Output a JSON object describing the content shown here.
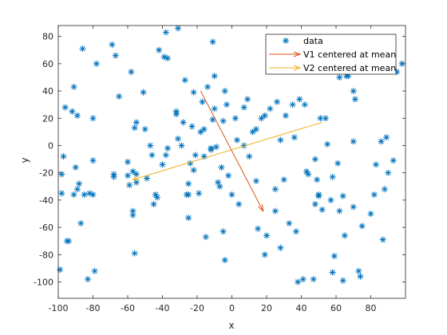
{
  "chart_data": {
    "type": "scatter",
    "title": "",
    "xlabel": "x",
    "ylabel": "y",
    "xlim": [
      -100,
      100
    ],
    "ylim": [
      -112,
      88
    ],
    "xticks": [
      -100,
      -80,
      -60,
      -40,
      -20,
      0,
      20,
      40,
      60,
      80
    ],
    "yticks": [
      -100,
      -80,
      -60,
      -40,
      -20,
      0,
      20,
      40,
      60,
      80
    ],
    "grid": false,
    "legend_position": "top-right",
    "legend": [
      "data",
      "V1 centered at mean",
      "V2 centered at mean"
    ],
    "colors": {
      "data": "#0072BD",
      "v1": "#D95319",
      "v2": "#EDB120",
      "axes": "#262626"
    },
    "series": [
      {
        "name": "data",
        "marker": "asterisk",
        "points": [
          [
            -99,
            -91
          ],
          [
            -98,
            -35
          ],
          [
            -98,
            -21
          ],
          [
            -97,
            -8
          ],
          [
            -96,
            28
          ],
          [
            -95,
            -70
          ],
          [
            -94,
            -70
          ],
          [
            -92,
            25
          ],
          [
            -91,
            43
          ],
          [
            -91,
            -36
          ],
          [
            -90,
            -16
          ],
          [
            -89,
            22
          ],
          [
            -89,
            -32
          ],
          [
            -88,
            -28
          ],
          [
            -87,
            -57
          ],
          [
            -86,
            71
          ],
          [
            -85,
            -36
          ],
          [
            -83,
            -98
          ],
          [
            -82,
            -35
          ],
          [
            -80,
            -36
          ],
          [
            -80,
            20
          ],
          [
            -80,
            -11
          ],
          [
            -79,
            -92
          ],
          [
            -78,
            60
          ],
          [
            -69,
            74
          ],
          [
            -68,
            -21
          ],
          [
            -68,
            -23
          ],
          [
            -67,
            66
          ],
          [
            -65,
            36
          ],
          [
            -60,
            -12
          ],
          [
            -60,
            -22
          ],
          [
            -59,
            -29
          ],
          [
            -58,
            54
          ],
          [
            -57,
            -48
          ],
          [
            -57,
            -51
          ],
          [
            -57,
            -19
          ],
          [
            -56,
            -79
          ],
          [
            -56,
            13
          ],
          [
            -55,
            17
          ],
          [
            -55,
            -21
          ],
          [
            -55,
            -27
          ],
          [
            -51,
            39
          ],
          [
            -50,
            12
          ],
          [
            -49,
            -24
          ],
          [
            -47,
            0
          ],
          [
            -46,
            -7
          ],
          [
            -45,
            -43
          ],
          [
            -44,
            -36
          ],
          [
            -43,
            -38
          ],
          [
            -42,
            70
          ],
          [
            -40,
            -14
          ],
          [
            -39,
            65
          ],
          [
            -38,
            83
          ],
          [
            -38,
            -7
          ],
          [
            -37,
            -2
          ],
          [
            -37,
            64
          ],
          [
            -31,
            86
          ],
          [
            -32,
            25
          ],
          [
            -32,
            23
          ],
          [
            -31,
            5
          ],
          [
            -29,
            0
          ],
          [
            -28,
            17
          ],
          [
            -27,
            48
          ],
          [
            -26,
            -36
          ],
          [
            -25,
            -36
          ],
          [
            -25,
            -53
          ],
          [
            -25,
            -28
          ],
          [
            -24,
            -13
          ],
          [
            -23,
            14
          ],
          [
            -22,
            39
          ],
          [
            -22,
            -18
          ],
          [
            -21,
            -7
          ],
          [
            -19,
            -35
          ],
          [
            -18,
            10
          ],
          [
            -17,
            32
          ],
          [
            -16,
            12
          ],
          [
            -16,
            -8
          ],
          [
            -15,
            -67
          ],
          [
            -14,
            43
          ],
          [
            -12,
            -3
          ],
          [
            -12,
            -2
          ],
          [
            -11,
            76
          ],
          [
            -11,
            19
          ],
          [
            -10,
            51
          ],
          [
            -10,
            27
          ],
          [
            -9,
            -1
          ],
          [
            -8,
            -27
          ],
          [
            -7,
            -30
          ],
          [
            -6,
            -16
          ],
          [
            -5,
            18
          ],
          [
            -5,
            -63
          ],
          [
            -4,
            40
          ],
          [
            -4,
            -84
          ],
          [
            -3,
            30
          ],
          [
            -2,
            -22
          ],
          [
            0,
            -36
          ],
          [
            2,
            20
          ],
          [
            3,
            4
          ],
          [
            4,
            -43
          ],
          [
            7,
            0
          ],
          [
            7,
            28
          ],
          [
            9,
            34
          ],
          [
            10,
            -8
          ],
          [
            12,
            10
          ],
          [
            14,
            12
          ],
          [
            14,
            -26
          ],
          [
            15,
            -61
          ],
          [
            17,
            20
          ],
          [
            19,
            22
          ],
          [
            19,
            -80
          ],
          [
            20,
            -66
          ],
          [
            22,
            27
          ],
          [
            25,
            -32
          ],
          [
            25,
            -48
          ],
          [
            26,
            32
          ],
          [
            28,
            4
          ],
          [
            28,
            -75
          ],
          [
            30,
            -25
          ],
          [
            31,
            22
          ],
          [
            33,
            -57
          ],
          [
            35,
            30
          ],
          [
            36,
            6
          ],
          [
            37,
            -63
          ],
          [
            38,
            -100
          ],
          [
            39,
            34
          ],
          [
            41,
            -98
          ],
          [
            42,
            30
          ],
          [
            43,
            -19
          ],
          [
            44,
            -21
          ],
          [
            47,
            -98
          ],
          [
            48,
            -10
          ],
          [
            48,
            -43
          ],
          [
            49,
            -25
          ],
          [
            50,
            -36
          ],
          [
            50,
            -37
          ],
          [
            51,
            20
          ],
          [
            52,
            -47
          ],
          [
            54,
            20
          ],
          [
            55,
            1
          ],
          [
            57,
            -40
          ],
          [
            58,
            -23
          ],
          [
            58,
            -93
          ],
          [
            59,
            -81
          ],
          [
            61,
            -13
          ],
          [
            62,
            -48
          ],
          [
            62,
            50
          ],
          [
            64,
            -99
          ],
          [
            64,
            -37
          ],
          [
            65,
            -66
          ],
          [
            66,
            51
          ],
          [
            67,
            57
          ],
          [
            67,
            51
          ],
          [
            70,
            3
          ],
          [
            70,
            -45
          ],
          [
            70,
            40
          ],
          [
            71,
            34
          ],
          [
            73,
            -92
          ],
          [
            74,
            -96
          ],
          [
            75,
            -59
          ],
          [
            80,
            -50
          ],
          [
            82,
            -36
          ],
          [
            83,
            -14
          ],
          [
            86,
            3
          ],
          [
            87,
            -69
          ],
          [
            88,
            -32
          ],
          [
            89,
            6
          ],
          [
            90,
            -20
          ],
          [
            93,
            -11
          ],
          [
            95,
            54
          ],
          [
            98,
            60
          ]
        ]
      }
    ],
    "vectors": [
      {
        "name": "V1 centered at mean",
        "from": [
          -18,
          40
        ],
        "to": [
          18,
          -48
        ]
      },
      {
        "name": "V2 centered at mean",
        "from": [
          52,
          17
        ],
        "to": [
          -57,
          -25
        ]
      }
    ]
  }
}
